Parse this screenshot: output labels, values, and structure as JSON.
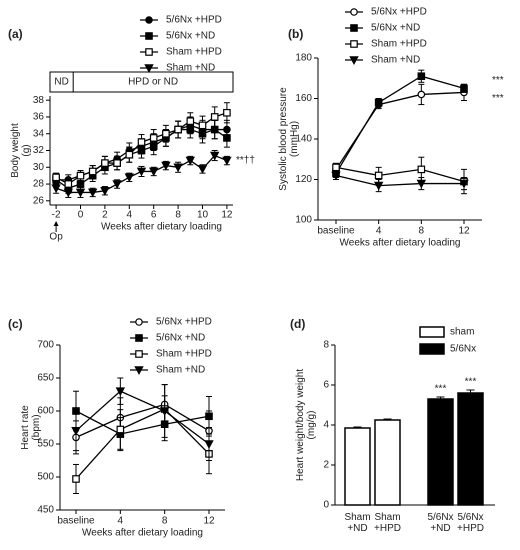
{
  "chart_data": [
    {
      "type": "line",
      "panel_label": "(a)",
      "ylabel": [
        "Body weight",
        "(g)"
      ],
      "xlabel": "Weeks after dietary loading",
      "x": [
        -2,
        -1,
        0,
        1,
        2,
        3,
        4,
        5,
        6,
        7,
        8,
        9,
        10,
        11,
        12
      ],
      "xlim": [
        -2.5,
        12.5
      ],
      "xticks": [
        -2,
        0,
        2,
        4,
        6,
        8,
        10,
        12
      ],
      "ylim": [
        25.5,
        38.5
      ],
      "yticks": [
        26,
        28,
        30,
        32,
        34,
        36,
        38
      ],
      "phase_labels": [
        "ND",
        "HPD or ND"
      ],
      "op_label": "Op",
      "annotations": [
        "**††"
      ],
      "series": [
        {
          "name": "5/6Nx +HPD",
          "color": "#000000",
          "marker": "circle-filled",
          "values": [
            28.5,
            28.5,
            29,
            29.5,
            30.5,
            31,
            32,
            32.5,
            33,
            33.5,
            34.5,
            35,
            34.5,
            34.5,
            34.5
          ],
          "errors": [
            0.5,
            0.6,
            0.6,
            0.7,
            0.8,
            0.8,
            0.9,
            0.9,
            1,
            1,
            1,
            1,
            1.1,
            1.1,
            1.1
          ]
        },
        {
          "name": "5/6Nx +ND",
          "color": "#000000",
          "marker": "square-filled",
          "values": [
            28.5,
            27.5,
            28,
            29,
            30,
            30.5,
            31.5,
            32,
            32.5,
            33.5,
            34.5,
            34.5,
            34,
            34.5,
            33.5
          ],
          "errors": [
            0.5,
            0.6,
            0.6,
            0.7,
            0.8,
            0.8,
            0.9,
            0.9,
            1,
            1,
            1,
            1,
            1.1,
            1.1,
            1.1
          ]
        },
        {
          "name": "Sham +HPD",
          "color": "#000000",
          "marker": "square-open",
          "values": [
            28.8,
            28,
            29,
            29.5,
            30.5,
            30.5,
            31.5,
            33,
            33.5,
            34,
            34.5,
            35.5,
            35,
            36,
            36.5
          ],
          "errors": [
            0.5,
            0.6,
            0.6,
            0.7,
            0.8,
            0.8,
            0.9,
            0.9,
            1,
            1,
            1,
            1,
            1.1,
            1.2,
            1.2
          ]
        },
        {
          "name": "Sham +ND",
          "color": "#000000",
          "marker": "triangle-filled",
          "values": [
            27.5,
            27,
            27,
            27,
            27.2,
            28,
            28.8,
            29.5,
            29.5,
            30.2,
            30,
            30.8,
            29.8,
            31.4,
            30.8
          ],
          "errors": [
            0.6,
            0.6,
            0.6,
            0.5,
            0.5,
            0.5,
            0.5,
            0.6,
            0.5,
            0.5,
            0.6,
            0.5,
            0.5,
            0.6,
            0.5
          ]
        }
      ]
    },
    {
      "type": "line",
      "panel_label": "(b)",
      "ylabel": [
        "Systolic blood pressure",
        "(mmHg)"
      ],
      "xlabel": "Weeks after dietary loading",
      "categories": [
        "baseline",
        "4",
        "8",
        "12"
      ],
      "ylim": [
        100,
        180
      ],
      "yticks": [
        100,
        120,
        140,
        160,
        180
      ],
      "annotations": [
        "***",
        "***"
      ],
      "series": [
        {
          "name": "5/6Nx +HPD",
          "color": "#000000",
          "marker": "circle-open",
          "values": [
            125,
            157,
            162,
            163
          ],
          "errors": [
            2,
            2,
            5,
            4
          ]
        },
        {
          "name": "5/6Nx +ND",
          "color": "#000000",
          "marker": "square-filled",
          "values": [
            123,
            158,
            171,
            165
          ],
          "errors": [
            2,
            2,
            3,
            2
          ]
        },
        {
          "name": "Sham +HPD",
          "color": "#000000",
          "marker": "square-open",
          "values": [
            126,
            122,
            125,
            119
          ],
          "errors": [
            2,
            4,
            6,
            6
          ]
        },
        {
          "name": "Sham +ND",
          "color": "#000000",
          "marker": "triangle-filled",
          "values": [
            122,
            117,
            118,
            118
          ],
          "errors": [
            2,
            3,
            3,
            3
          ]
        }
      ]
    },
    {
      "type": "line",
      "panel_label": "(c)",
      "ylabel": [
        "Heart rate",
        "(bpm)"
      ],
      "xlabel": "Weeks after dietary loading",
      "categories": [
        "baseline",
        "4",
        "8",
        "12"
      ],
      "ylim": [
        450,
        700
      ],
      "yticks": [
        450,
        500,
        550,
        600,
        650,
        700
      ],
      "series": [
        {
          "name": "5/6Nx +HPD",
          "color": "#000000",
          "marker": "circle-open",
          "values": [
            560,
            590,
            610,
            570
          ],
          "errors": [
            25,
            30,
            30,
            30
          ]
        },
        {
          "name": "5/6Nx +ND",
          "color": "#000000",
          "marker": "square-filled",
          "values": [
            600,
            565,
            580,
            592
          ],
          "errors": [
            30,
            25,
            25,
            30
          ]
        },
        {
          "name": "Sham +HPD",
          "color": "#000000",
          "marker": "square-open",
          "values": [
            497,
            572,
            603,
            535
          ],
          "errors": [
            22,
            30,
            20,
            30
          ]
        },
        {
          "name": "Sham +ND",
          "color": "#000000",
          "marker": "triangle-filled",
          "values": [
            570,
            630,
            600,
            550
          ],
          "errors": [
            30,
            20,
            40,
            25
          ]
        }
      ]
    },
    {
      "type": "bar",
      "panel_label": "(d)",
      "ylabel": [
        "Heart weight/body weight",
        "(mg/g)"
      ],
      "categories": [
        [
          "Sham",
          "+ND"
        ],
        [
          "Sham",
          "+HPD"
        ],
        [
          "5/6Nx",
          "+ND"
        ],
        [
          "5/6Nx",
          "+HPD"
        ]
      ],
      "values": [
        3.85,
        4.25,
        5.3,
        5.6
      ],
      "errors": [
        0.05,
        0.05,
        0.1,
        0.15
      ],
      "colors": [
        "#ffffff",
        "#ffffff",
        "#000000",
        "#000000"
      ],
      "ylim": [
        0,
        8
      ],
      "yticks": [
        0,
        2,
        4,
        6,
        8
      ],
      "legend": [
        {
          "name": "sham",
          "color": "#ffffff"
        },
        {
          "name": "5/6Nx",
          "color": "#000000"
        }
      ],
      "annotations": [
        "***",
        "***"
      ]
    }
  ]
}
